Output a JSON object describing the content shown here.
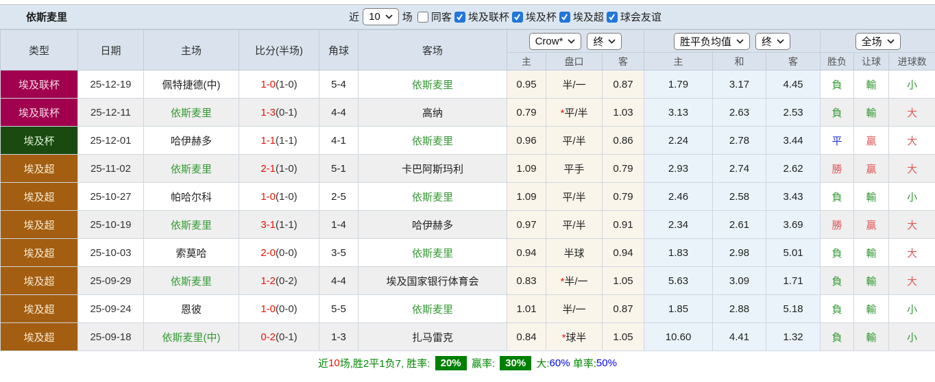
{
  "title": "依斯麦里",
  "toolbar": {
    "near_label": "近",
    "count_value": "10",
    "unit_label": "场",
    "filters": [
      {
        "label": "同客",
        "checked": false
      },
      {
        "label": "埃及联杯",
        "checked": true
      },
      {
        "label": "埃及杯",
        "checked": true
      },
      {
        "label": "埃及超",
        "checked": true
      },
      {
        "label": "球会友谊",
        "checked": true
      }
    ]
  },
  "header": {
    "static_cols": [
      "类型",
      "日期",
      "主场",
      "比分(半场)",
      "角球",
      "客场"
    ],
    "odds_company_select": "Crow*",
    "odds_state_select": "终",
    "avg_metric_select": "胜平负均值",
    "avg_state_select": "终",
    "scope_select": "全场",
    "sub_cols": [
      "主",
      "盘口",
      "客",
      "主",
      "和",
      "客",
      "胜负",
      "让球",
      "进球数"
    ]
  },
  "league_styles": {
    "埃及联杯": {
      "bg": "#a0004e",
      "fg": "#f3d9e4"
    },
    "埃及杯": {
      "bg": "#1a4a10",
      "fg": "#d9efd2"
    },
    "埃及超": {
      "bg": "#a35e12",
      "fg": "#f7ecd2"
    }
  },
  "rows": [
    {
      "type": "埃及联杯",
      "date": "25-12-19",
      "home": {
        "text": "佩特捷德(中)",
        "focal": false
      },
      "score_ft": "1-0",
      "score_ht": "(1-0)",
      "corner": "5-4",
      "away": {
        "text": "依斯麦里",
        "focal": true
      },
      "odds_home": "0.95",
      "handicap": "半/一",
      "star": false,
      "odds_away": "0.87",
      "avg_home": "1.79",
      "avg_draw": "3.17",
      "avg_away": "4.45",
      "outcome": {
        "text": "負",
        "color": "green"
      },
      "let": {
        "text": "輸",
        "color": "green"
      },
      "goals": {
        "text": "小",
        "color": "green"
      }
    },
    {
      "type": "埃及联杯",
      "date": "25-12-11",
      "home": {
        "text": "依斯麦里",
        "focal": true
      },
      "score_ft": "1-3",
      "score_ht": "(0-1)",
      "corner": "4-4",
      "away": {
        "text": "高纳",
        "focal": false
      },
      "odds_home": "0.79",
      "handicap": "平/半",
      "star": true,
      "odds_away": "1.03",
      "avg_home": "3.13",
      "avg_draw": "2.63",
      "avg_away": "2.53",
      "outcome": {
        "text": "負",
        "color": "green"
      },
      "let": {
        "text": "輸",
        "color": "green"
      },
      "goals": {
        "text": "大",
        "color": "red"
      }
    },
    {
      "type": "埃及杯",
      "date": "25-12-01",
      "home": {
        "text": "哈伊赫多",
        "focal": false
      },
      "score_ft": "1-1",
      "score_ht": "(1-1)",
      "corner": "4-1",
      "away": {
        "text": "依斯麦里",
        "focal": true
      },
      "odds_home": "0.96",
      "handicap": "平/半",
      "star": false,
      "odds_away": "0.86",
      "avg_home": "2.24",
      "avg_draw": "2.78",
      "avg_away": "3.44",
      "outcome": {
        "text": "平",
        "color": "blue"
      },
      "let": {
        "text": "贏",
        "color": "red"
      },
      "goals": {
        "text": "大",
        "color": "red"
      }
    },
    {
      "type": "埃及超",
      "date": "25-11-02",
      "home": {
        "text": "依斯麦里",
        "focal": true
      },
      "score_ft": "2-1",
      "score_ht": "(1-0)",
      "corner": "5-1",
      "away": {
        "text": "卡巴阿斯玛利",
        "focal": false
      },
      "odds_home": "1.09",
      "handicap": "平手",
      "star": false,
      "odds_away": "0.79",
      "avg_home": "2.93",
      "avg_draw": "2.74",
      "avg_away": "2.62",
      "outcome": {
        "text": "勝",
        "color": "red"
      },
      "let": {
        "text": "贏",
        "color": "red"
      },
      "goals": {
        "text": "大",
        "color": "red"
      }
    },
    {
      "type": "埃及超",
      "date": "25-10-27",
      "home": {
        "text": "帕哈尔科",
        "focal": false
      },
      "score_ft": "1-0",
      "score_ht": "(1-0)",
      "corner": "2-5",
      "away": {
        "text": "依斯麦里",
        "focal": true
      },
      "odds_home": "1.09",
      "handicap": "平/半",
      "star": false,
      "odds_away": "0.79",
      "avg_home": "2.46",
      "avg_draw": "2.58",
      "avg_away": "3.43",
      "outcome": {
        "text": "負",
        "color": "green"
      },
      "let": {
        "text": "輸",
        "color": "green"
      },
      "goals": {
        "text": "小",
        "color": "green"
      }
    },
    {
      "type": "埃及超",
      "date": "25-10-19",
      "home": {
        "text": "依斯麦里",
        "focal": true
      },
      "score_ft": "3-1",
      "score_ht": "(1-1)",
      "corner": "1-4",
      "away": {
        "text": "哈伊赫多",
        "focal": false
      },
      "odds_home": "0.97",
      "handicap": "平/半",
      "star": false,
      "odds_away": "0.91",
      "avg_home": "2.34",
      "avg_draw": "2.61",
      "avg_away": "3.69",
      "outcome": {
        "text": "勝",
        "color": "red"
      },
      "let": {
        "text": "贏",
        "color": "red"
      },
      "goals": {
        "text": "大",
        "color": "red"
      }
    },
    {
      "type": "埃及超",
      "date": "25-10-03",
      "home": {
        "text": "索莫哈",
        "focal": false
      },
      "score_ft": "2-0",
      "score_ht": "(0-0)",
      "corner": "3-5",
      "away": {
        "text": "依斯麦里",
        "focal": true
      },
      "odds_home": "0.94",
      "handicap": "半球",
      "star": false,
      "odds_away": "0.94",
      "avg_home": "1.83",
      "avg_draw": "2.98",
      "avg_away": "5.01",
      "outcome": {
        "text": "負",
        "color": "green"
      },
      "let": {
        "text": "輸",
        "color": "green"
      },
      "goals": {
        "text": "大",
        "color": "red"
      }
    },
    {
      "type": "埃及超",
      "date": "25-09-29",
      "home": {
        "text": "依斯麦里",
        "focal": true
      },
      "score_ft": "1-2",
      "score_ht": "(0-2)",
      "corner": "4-4",
      "away": {
        "text": "埃及国家银行体育会",
        "focal": false
      },
      "odds_home": "0.83",
      "handicap": "半/一",
      "star": true,
      "odds_away": "1.05",
      "avg_home": "5.63",
      "avg_draw": "3.09",
      "avg_away": "1.71",
      "outcome": {
        "text": "負",
        "color": "green"
      },
      "let": {
        "text": "輸",
        "color": "green"
      },
      "goals": {
        "text": "大",
        "color": "red"
      }
    },
    {
      "type": "埃及超",
      "date": "25-09-24",
      "home": {
        "text": "恩彼",
        "focal": false
      },
      "score_ft": "1-0",
      "score_ht": "(0-0)",
      "corner": "5-5",
      "away": {
        "text": "依斯麦里",
        "focal": true
      },
      "odds_home": "1.01",
      "handicap": "半/一",
      "star": false,
      "odds_away": "0.87",
      "avg_home": "1.85",
      "avg_draw": "2.88",
      "avg_away": "5.18",
      "outcome": {
        "text": "負",
        "color": "green"
      },
      "let": {
        "text": "輸",
        "color": "green"
      },
      "goals": {
        "text": "小",
        "color": "green"
      }
    },
    {
      "type": "埃及超",
      "date": "25-09-18",
      "home": {
        "text": "依斯麦里(中)",
        "focal": true
      },
      "score_ft": "0-2",
      "score_ht": "(0-1)",
      "corner": "1-3",
      "away": {
        "text": "扎马雷克",
        "focal": false
      },
      "odds_home": "0.84",
      "handicap": "球半",
      "star": true,
      "odds_away": "1.05",
      "avg_home": "10.60",
      "avg_draw": "4.41",
      "avg_away": "1.32",
      "outcome": {
        "text": "負",
        "color": "green"
      },
      "let": {
        "text": "輸",
        "color": "green"
      },
      "goals": {
        "text": "小",
        "color": "green"
      }
    }
  ],
  "footer_segments": [
    {
      "text": "近",
      "style": "green"
    },
    {
      "text": "10",
      "style": "red"
    },
    {
      "text": "场,胜2平1负7, 胜率: ",
      "style": "green"
    },
    {
      "text": "20%",
      "style": "badge"
    },
    {
      "text": " 赢率: ",
      "style": "green"
    },
    {
      "text": "30%",
      "style": "badge"
    },
    {
      "text": " 大:",
      "style": "green"
    },
    {
      "text": "60%",
      "style": "blue"
    },
    {
      "text": " 单率:",
      "style": "green"
    },
    {
      "text": "50%",
      "style": "blue"
    }
  ],
  "colors": {
    "header_bg": "#dae3ed",
    "cream_bg": "#faf5eb",
    "lightblue_bg": "#e9f3f9",
    "focal_green": "#339933",
    "score_red": "#ee1100",
    "soft_red": "#e05858",
    "result_blue": "#2233cc",
    "footer_green": "#008800",
    "footer_blue": "#0000ee",
    "badge_green": "#008000",
    "checkbox_blue": "#2176d9"
  }
}
